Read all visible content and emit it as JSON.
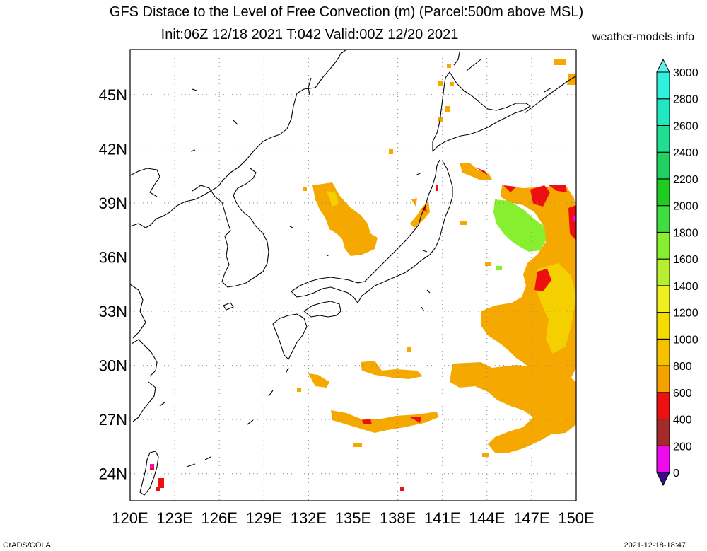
{
  "title": {
    "line1": "GFS Distace to the Level of Free Convection (m) (Parcel:500m above MSL)",
    "line2": "Init:06Z 12/18 2021 T:042 Valid:00Z 12/20 2021"
  },
  "site": "weather-models.info",
  "footer": {
    "left": "GrADS/COLA",
    "right": "2021-12-18-18:47"
  },
  "map": {
    "lon_range": [
      120,
      150
    ],
    "lat_range": [
      22.5,
      47.5
    ],
    "lon_ticks": [
      "120E",
      "123E",
      "126E",
      "129E",
      "132E",
      "135E",
      "138E",
      "141E",
      "144E",
      "147E",
      "150E"
    ],
    "lat_ticks": [
      "24N",
      "27N",
      "30N",
      "33N",
      "36N",
      "39N",
      "42N",
      "45N"
    ],
    "grid": "dotted"
  },
  "colorbar": {
    "labels": [
      "0",
      "200",
      "400",
      "600",
      "800",
      "1000",
      "1200",
      "1400",
      "1600",
      "1800",
      "2000",
      "2200",
      "2400",
      "2600",
      "2800",
      "3000"
    ],
    "colors": {
      "below_min": "#3d0a8a",
      "bins": [
        "#3d0a8a",
        "#ee0cee",
        "#a52a2a",
        "#ee1010",
        "#f5a200",
        "#f5c200",
        "#f5dc00",
        "#f0f020",
        "#b8ee30",
        "#88ee30",
        "#40dd40",
        "#20cc20",
        "#20d060",
        "#20dd90",
        "#20e8c0",
        "#30f0e0"
      ],
      "above_max": "#60f0f0"
    }
  },
  "fields": {
    "colors": {
      "orange": "#f5a800",
      "yellow": "#f5d000",
      "red": "#ee1010",
      "brown": "#a52a2a",
      "green": "#88ee30",
      "magenta": "#ee0cee"
    }
  }
}
